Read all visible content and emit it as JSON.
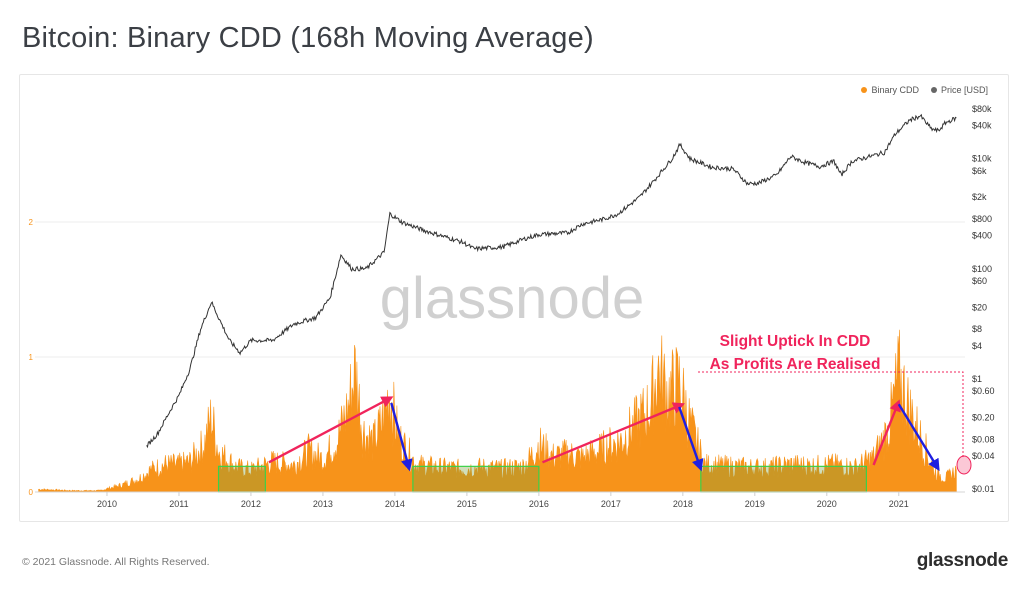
{
  "title": "Bitcoin: Binary CDD (168h Moving Average)",
  "legend": [
    {
      "label": "Binary CDD",
      "color": "#f7931a"
    },
    {
      "label": "Price [USD]",
      "color": "#666666"
    }
  ],
  "watermark": "glassnode",
  "footer": {
    "copyright": "© 2021 Glassnode. All Rights Reserved.",
    "brand": "glassnode"
  },
  "annotation": {
    "line1": "Slight Uptick In CDD",
    "line2": "As Profits Are Realised",
    "color": "#f0245c"
  },
  "chart_data": {
    "type": "area",
    "x_tick_labels": [
      "2010",
      "2011",
      "2012",
      "2013",
      "2014",
      "2015",
      "2016",
      "2017",
      "2018",
      "2019",
      "2020",
      "2021"
    ],
    "left_axis": {
      "ticks": [
        0,
        1,
        2
      ],
      "range": [
        0,
        2.5
      ]
    },
    "right_axis": {
      "scale": "log",
      "tick_labels": [
        "$80k",
        "$40k",
        "$10k",
        "$6k",
        "$2k",
        "$800",
        "$400",
        "$100",
        "$60",
        "$20",
        "$8",
        "$4",
        "$1",
        "$0.60",
        "$0.20",
        "$0.08",
        "$0.04",
        "$0.01"
      ],
      "tick_values": [
        80000,
        40000,
        10000,
        6000,
        2000,
        800,
        400,
        100,
        60,
        20,
        8,
        4,
        1,
        0.6,
        0.2,
        0.08,
        0.04,
        0.01
      ]
    },
    "series": [
      {
        "name": "Binary CDD",
        "color": "#f7931a",
        "axis": "left",
        "points": [
          [
            2009.05,
            0.02
          ],
          [
            2009.5,
            0.01
          ],
          [
            2009.9,
            0.01
          ],
          [
            2010.2,
            0.05
          ],
          [
            2010.45,
            0.1
          ],
          [
            2010.6,
            0.16
          ],
          [
            2010.8,
            0.2
          ],
          [
            2011.0,
            0.2
          ],
          [
            2011.15,
            0.22
          ],
          [
            2011.35,
            0.35
          ],
          [
            2011.45,
            0.55
          ],
          [
            2011.55,
            0.3
          ],
          [
            2011.8,
            0.18
          ],
          [
            2012.0,
            0.16
          ],
          [
            2012.3,
            0.22
          ],
          [
            2012.6,
            0.2
          ],
          [
            2012.8,
            0.3
          ],
          [
            2013.0,
            0.24
          ],
          [
            2013.2,
            0.38
          ],
          [
            2013.35,
            0.62
          ],
          [
            2013.45,
            0.9
          ],
          [
            2013.55,
            0.45
          ],
          [
            2013.7,
            0.36
          ],
          [
            2013.85,
            0.55
          ],
          [
            2013.92,
            0.74
          ],
          [
            2014.05,
            0.4
          ],
          [
            2014.3,
            0.2
          ],
          [
            2014.6,
            0.18
          ],
          [
            2014.9,
            0.17
          ],
          [
            2015.2,
            0.18
          ],
          [
            2015.5,
            0.17
          ],
          [
            2015.8,
            0.19
          ],
          [
            2016.0,
            0.35
          ],
          [
            2016.2,
            0.26
          ],
          [
            2016.4,
            0.28
          ],
          [
            2016.6,
            0.25
          ],
          [
            2016.9,
            0.32
          ],
          [
            2017.15,
            0.38
          ],
          [
            2017.35,
            0.5
          ],
          [
            2017.55,
            0.62
          ],
          [
            2017.65,
            0.9
          ],
          [
            2017.8,
            0.72
          ],
          [
            2017.95,
            0.8
          ],
          [
            2018.1,
            0.5
          ],
          [
            2018.3,
            0.2
          ],
          [
            2018.6,
            0.19
          ],
          [
            2018.9,
            0.18
          ],
          [
            2019.2,
            0.18
          ],
          [
            2019.5,
            0.2
          ],
          [
            2019.8,
            0.19
          ],
          [
            2020.1,
            0.2
          ],
          [
            2020.4,
            0.18
          ],
          [
            2020.65,
            0.25
          ],
          [
            2020.85,
            0.45
          ],
          [
            2021.0,
            0.86
          ],
          [
            2021.15,
            0.6
          ],
          [
            2021.3,
            0.4
          ],
          [
            2021.5,
            0.15
          ],
          [
            2021.65,
            0.1
          ],
          [
            2021.8,
            0.16
          ]
        ]
      },
      {
        "name": "Price [USD]",
        "color": "#333333",
        "axis": "right",
        "points": [
          [
            2010.55,
            0.06
          ],
          [
            2010.7,
            0.1
          ],
          [
            2010.9,
            0.3
          ],
          [
            2011.0,
            0.5
          ],
          [
            2011.15,
            1.5
          ],
          [
            2011.3,
            8
          ],
          [
            2011.45,
            25
          ],
          [
            2011.55,
            13
          ],
          [
            2011.7,
            5
          ],
          [
            2011.85,
            3
          ],
          [
            2012.0,
            5
          ],
          [
            2012.3,
            5
          ],
          [
            2012.6,
            10
          ],
          [
            2012.9,
            13
          ],
          [
            2013.1,
            30
          ],
          [
            2013.25,
            180
          ],
          [
            2013.4,
            100
          ],
          [
            2013.6,
            100
          ],
          [
            2013.85,
            200
          ],
          [
            2013.93,
            1000
          ],
          [
            2014.1,
            700
          ],
          [
            2014.4,
            500
          ],
          [
            2014.7,
            380
          ],
          [
            2014.95,
            300
          ],
          [
            2015.1,
            230
          ],
          [
            2015.5,
            250
          ],
          [
            2015.8,
            350
          ],
          [
            2016.0,
            420
          ],
          [
            2016.4,
            450
          ],
          [
            2016.6,
            650
          ],
          [
            2016.9,
            800
          ],
          [
            2017.1,
            1000
          ],
          [
            2017.4,
            2000
          ],
          [
            2017.6,
            4000
          ],
          [
            2017.85,
            10000
          ],
          [
            2017.96,
            18000
          ],
          [
            2018.1,
            10000
          ],
          [
            2018.4,
            7000
          ],
          [
            2018.7,
            6500
          ],
          [
            2018.9,
            3500
          ],
          [
            2019.05,
            3600
          ],
          [
            2019.3,
            5000
          ],
          [
            2019.5,
            11000
          ],
          [
            2019.7,
            8500
          ],
          [
            2019.9,
            7200
          ],
          [
            2020.1,
            9000
          ],
          [
            2020.2,
            5000
          ],
          [
            2020.35,
            9000
          ],
          [
            2020.6,
            11000
          ],
          [
            2020.8,
            13000
          ],
          [
            2020.95,
            28000
          ],
          [
            2021.15,
            50000
          ],
          [
            2021.3,
            60000
          ],
          [
            2021.45,
            35000
          ],
          [
            2021.55,
            32000
          ],
          [
            2021.65,
            45000
          ],
          [
            2021.8,
            55000
          ]
        ]
      }
    ],
    "highlight_boxes": [
      {
        "x_start": 2011.55,
        "x_end": 2012.2,
        "y_range": [
          0,
          0.19
        ]
      },
      {
        "x_start": 2014.25,
        "x_end": 2016.0,
        "y_range": [
          0,
          0.19
        ]
      },
      {
        "x_start": 2018.25,
        "x_end": 2020.55,
        "y_range": [
          0,
          0.19
        ]
      }
    ],
    "arrows": [
      {
        "color": "#f0245c",
        "from": [
          2012.25,
          0.22
        ],
        "to": [
          2013.95,
          0.7
        ]
      },
      {
        "color": "#1f1fe0",
        "from": [
          2013.95,
          0.66
        ],
        "to": [
          2014.2,
          0.17
        ]
      },
      {
        "color": "#f0245c",
        "from": [
          2016.05,
          0.22
        ],
        "to": [
          2018.0,
          0.65
        ]
      },
      {
        "color": "#1f1fe0",
        "from": [
          2017.95,
          0.63
        ],
        "to": [
          2018.25,
          0.17
        ]
      },
      {
        "color": "#f0245c",
        "from": [
          2020.65,
          0.2
        ],
        "to": [
          2021.0,
          0.67
        ]
      },
      {
        "color": "#1f1fe0",
        "from": [
          2021.0,
          0.65
        ],
        "to": [
          2021.55,
          0.17
        ]
      }
    ],
    "grid": true
  }
}
